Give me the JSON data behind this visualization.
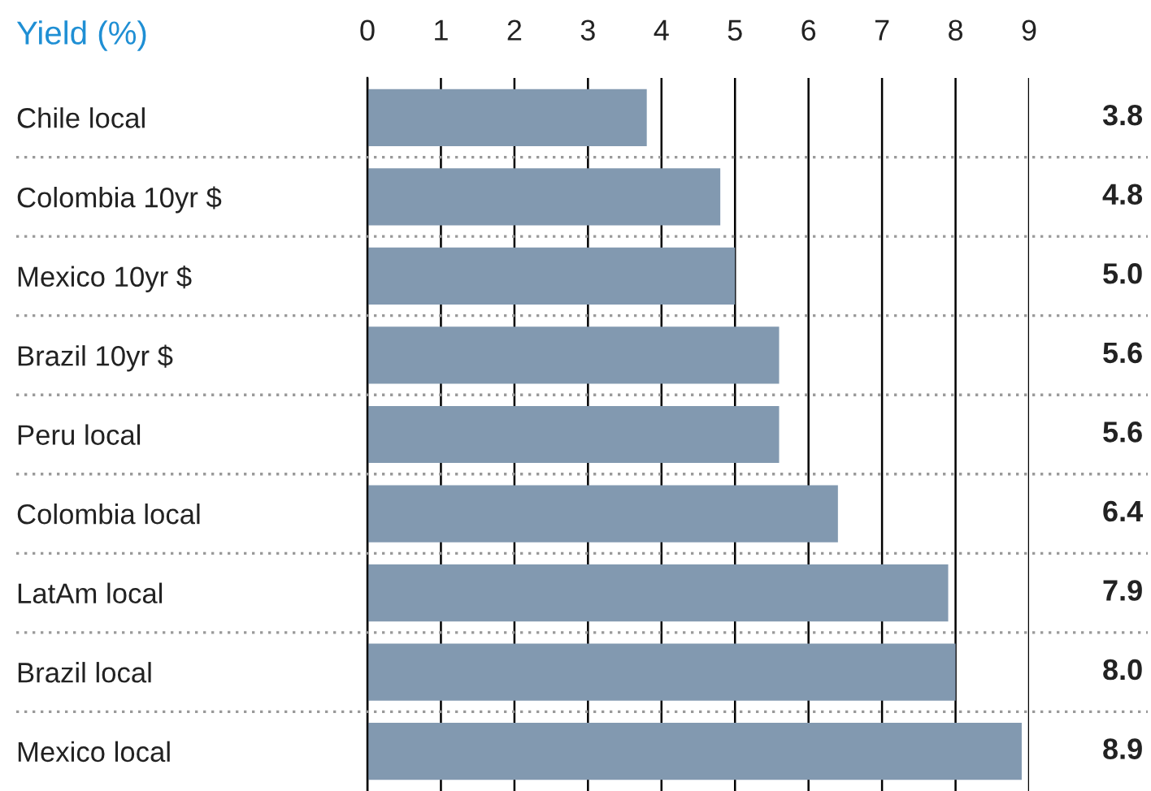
{
  "chart_data": {
    "type": "bar",
    "orientation": "horizontal",
    "title": "Yield (%)",
    "categories": [
      "Chile local",
      "Colombia 10yr $",
      "Mexico 10yr $",
      "Brazil 10yr $",
      "Peru local",
      "Colombia local",
      "LatAm local",
      "Brazil local",
      "Mexico local"
    ],
    "values": [
      3.8,
      4.8,
      5.0,
      5.6,
      5.6,
      6.4,
      7.9,
      8.0,
      8.9
    ],
    "color": "#8299b0",
    "xlim": [
      0,
      9
    ],
    "xticks": [
      0,
      1,
      2,
      3,
      4,
      5,
      6,
      7,
      8,
      9
    ],
    "value_labels": [
      "3.8",
      "4.8",
      "5.0",
      "5.6",
      "5.6",
      "6.4",
      "7.9",
      "8.0",
      "8.9"
    ],
    "grid": "x"
  }
}
